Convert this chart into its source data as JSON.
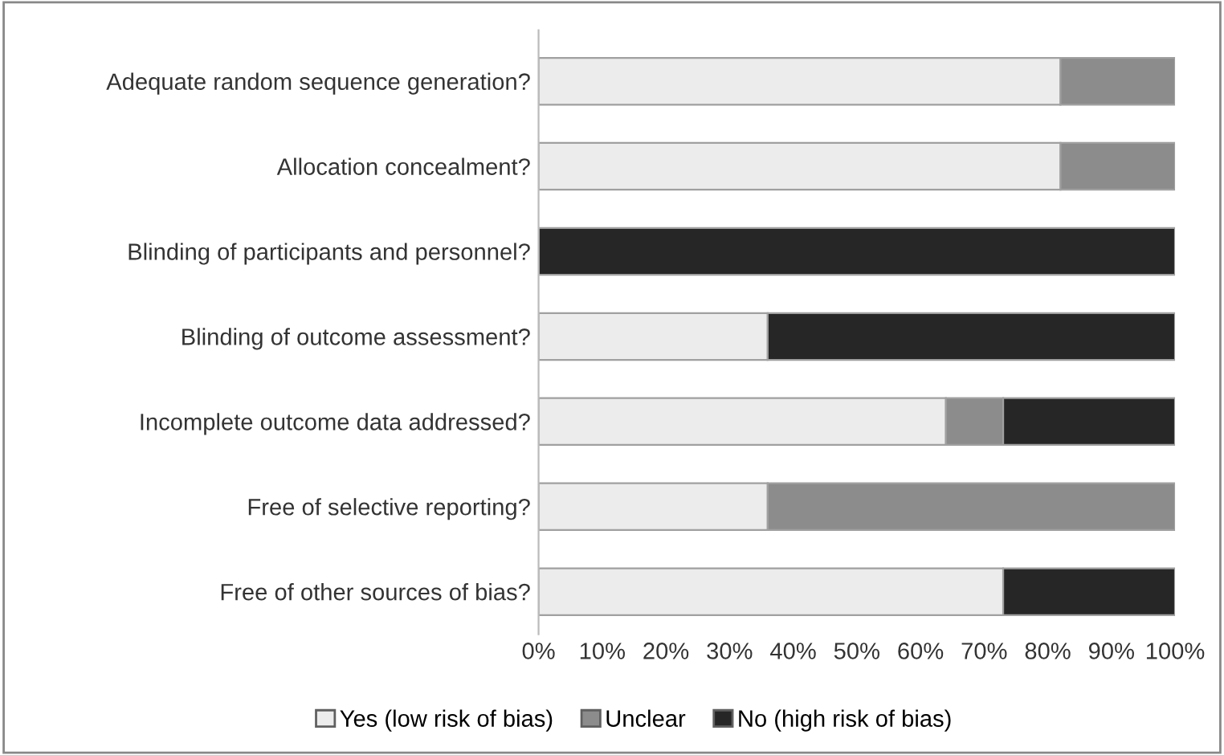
{
  "chart_data": {
    "type": "bar",
    "orientation": "horizontal",
    "stacked": true,
    "categories": [
      "Adequate random sequence generation?",
      "Allocation concealment?",
      "Blinding of participants and personnel?",
      "Blinding of outcome assessment?",
      "Incomplete outcome data addressed?",
      "Free of selective reporting?",
      "Free of other sources of bias?"
    ],
    "series": [
      {
        "name": "Yes (low risk of bias)",
        "color": "#ececec",
        "values": [
          82,
          82,
          0,
          36,
          64,
          36,
          73
        ]
      },
      {
        "name": "Unclear",
        "color": "#8c8c8c",
        "values": [
          18,
          18,
          0,
          0,
          9,
          64,
          0
        ]
      },
      {
        "name": "No (high risk of bias)",
        "color": "#262626",
        "values": [
          0,
          0,
          100,
          64,
          27,
          0,
          27
        ]
      }
    ],
    "xlim": [
      0,
      100
    ],
    "xticks": [
      {
        "value": 0,
        "label": "0%"
      },
      {
        "value": 10,
        "label": "10%"
      },
      {
        "value": 20,
        "label": "20%"
      },
      {
        "value": 30,
        "label": "30%"
      },
      {
        "value": 40,
        "label": "40%"
      },
      {
        "value": 50,
        "label": "50%"
      },
      {
        "value": 60,
        "label": "60%"
      },
      {
        "value": 70,
        "label": "70%"
      },
      {
        "value": 80,
        "label": "80%"
      },
      {
        "value": 90,
        "label": "90%"
      },
      {
        "value": 100,
        "label": "100%"
      }
    ],
    "grid": false,
    "legend": "bottom"
  }
}
